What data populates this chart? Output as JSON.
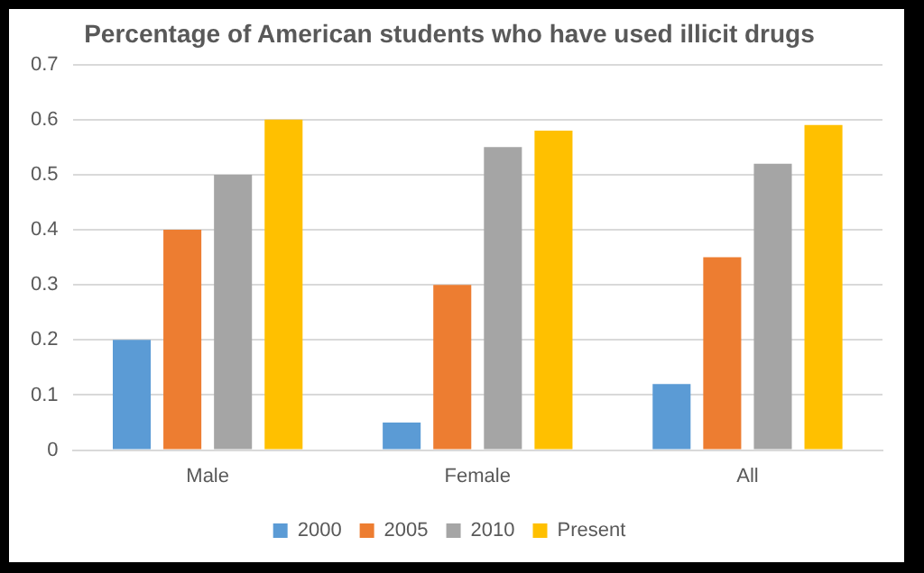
{
  "chart_data": {
    "type": "bar",
    "title": "Percentage of American students who have used illicit drugs",
    "categories": [
      "Male",
      "Female",
      "All"
    ],
    "series": [
      {
        "name": "2000",
        "color": "#5b9bd5",
        "values": [
          0.2,
          0.05,
          0.12
        ]
      },
      {
        "name": "2005",
        "color": "#ed7d31",
        "values": [
          0.4,
          0.3,
          0.35
        ]
      },
      {
        "name": "2010",
        "color": "#a5a5a5",
        "values": [
          0.5,
          0.55,
          0.52
        ]
      },
      {
        "name": "Present",
        "color": "#ffc000",
        "values": [
          0.6,
          0.58,
          0.59
        ]
      }
    ],
    "ylim": [
      0,
      0.7
    ],
    "yticks": [
      0,
      0.1,
      0.2,
      0.3,
      0.4,
      0.5,
      0.6,
      0.7
    ],
    "grid": "y",
    "legend": "bottom"
  }
}
